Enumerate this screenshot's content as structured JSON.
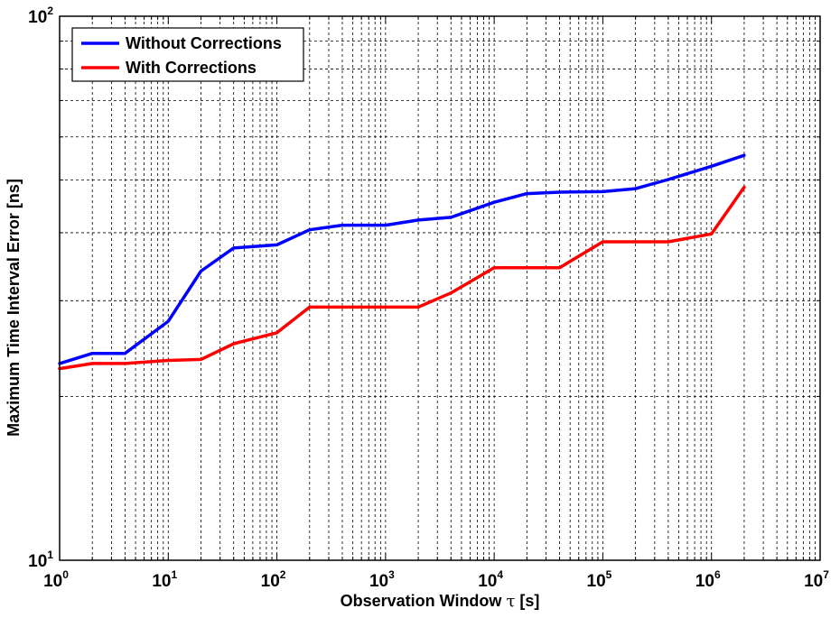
{
  "chart_data": {
    "type": "line",
    "xlabel_prefix": "Observation Window ",
    "xlabel_symbol": "τ",
    "xlabel_suffix": " [s]",
    "ylabel": "Maximum Time Interval Error [ns]",
    "xscale": "log",
    "yscale": "log",
    "xlim": [
      1,
      10000000
    ],
    "ylim": [
      10,
      100
    ],
    "grid": true,
    "legend_position": "top-left",
    "x_tick_labels": [
      {
        "base": "10",
        "exp": "0"
      },
      {
        "base": "10",
        "exp": "1"
      },
      {
        "base": "10",
        "exp": "2"
      },
      {
        "base": "10",
        "exp": "3"
      },
      {
        "base": "10",
        "exp": "4"
      },
      {
        "base": "10",
        "exp": "5"
      },
      {
        "base": "10",
        "exp": "6"
      },
      {
        "base": "10",
        "exp": "7"
      }
    ],
    "y_tick_labels": [
      {
        "base": "10",
        "exp": "1"
      },
      {
        "base": "10",
        "exp": "2"
      }
    ],
    "series": [
      {
        "name": "Without Corrections",
        "color": "#0000ff",
        "x": [
          1,
          2,
          4,
          10,
          20,
          40,
          100,
          200,
          400,
          1000,
          2000,
          4000,
          10000,
          20000,
          40000,
          100000,
          200000,
          400000,
          1000000,
          2000000
        ],
        "y": [
          23,
          24,
          24,
          27.5,
          34,
          37.5,
          38,
          40.5,
          41.3,
          41.3,
          42.2,
          42.7,
          45.5,
          47.2,
          47.5,
          47.6,
          48.2,
          50.1,
          53,
          55.5
        ]
      },
      {
        "name": "With Corrections",
        "color": "#ff0000",
        "x": [
          1,
          2,
          4,
          10,
          20,
          40,
          100,
          200,
          400,
          1000,
          2000,
          4000,
          10000,
          20000,
          40000,
          100000,
          200000,
          400000,
          1000000,
          2000000
        ],
        "y": [
          22.5,
          23,
          23,
          23.3,
          23.4,
          25,
          26.2,
          29.2,
          29.2,
          29.2,
          29.2,
          31,
          34.5,
          34.5,
          34.5,
          38.5,
          38.5,
          38.5,
          39.8,
          48.5
        ]
      }
    ]
  }
}
